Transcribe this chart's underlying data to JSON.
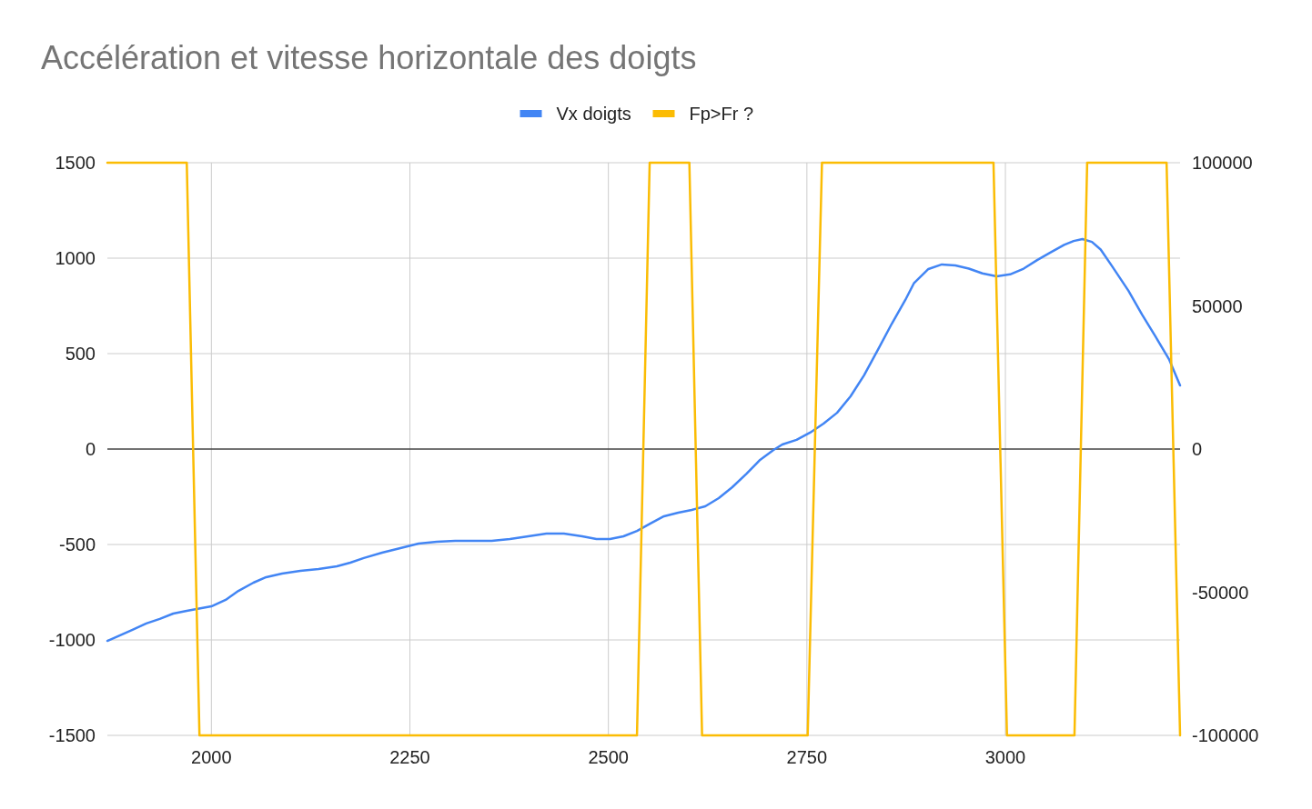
{
  "chart_data": {
    "type": "line",
    "title": "Accélération et vitesse horizontale des doigts",
    "xlim": [
      1869,
      3220
    ],
    "xticks": [
      2000,
      2250,
      2500,
      2750,
      3000
    ],
    "ylim": [
      -1500,
      1500
    ],
    "yticks": [
      -1500,
      -1000,
      -500,
      0,
      500,
      1000,
      1500
    ],
    "y2lim": [
      -100000,
      100000
    ],
    "y2ticks": [
      -100000,
      -50000,
      0,
      50000,
      100000
    ],
    "grid": true,
    "legend": "top",
    "ref_lines": [
      {
        "axis": "y",
        "value": 0,
        "color": "#000000"
      }
    ],
    "series": [
      {
        "name": "Vx doigts",
        "color": "#4285f4",
        "x": [
          1869,
          1900,
          1918,
          1935,
          1952,
          1969,
          2000,
          2018,
          2034,
          2053,
          2069,
          2089,
          2112,
          2135,
          2158,
          2175,
          2192,
          2215,
          2238,
          2261,
          2284,
          2307,
          2330,
          2353,
          2376,
          2399,
          2422,
          2444,
          2467,
          2485,
          2502,
          2519,
          2536,
          2553,
          2570,
          2588,
          2605,
          2622,
          2639,
          2656,
          2674,
          2691,
          2708,
          2719,
          2737,
          2754,
          2771,
          2788,
          2805,
          2822,
          2840,
          2857,
          2874,
          2885,
          2903,
          2920,
          2937,
          2954,
          2971,
          2989,
          3006,
          3023,
          3040,
          3057,
          3074,
          3086,
          3097,
          3109,
          3120,
          3134,
          3155,
          3172,
          3189,
          3206,
          3220
        ],
        "values": [
          -1005,
          -948,
          -914,
          -890,
          -862,
          -848,
          -824,
          -790,
          -743,
          -700,
          -671,
          -652,
          -638,
          -629,
          -614,
          -595,
          -571,
          -543,
          -519,
          -495,
          -486,
          -481,
          -481,
          -481,
          -471,
          -457,
          -443,
          -443,
          -457,
          -471,
          -471,
          -457,
          -429,
          -390,
          -352,
          -333,
          -319,
          -300,
          -257,
          -200,
          -129,
          -57,
          -5,
          24,
          48,
          86,
          133,
          190,
          276,
          386,
          524,
          657,
          781,
          870,
          943,
          967,
          962,
          945,
          920,
          905,
          915,
          945,
          990,
          1030,
          1070,
          1090,
          1100,
          1085,
          1045,
          960,
          829,
          705,
          590,
          471,
          333
        ]
      },
      {
        "name": "Fp>Fr ?",
        "color": "#fbbc04",
        "axis": "y2",
        "x": [
          1869,
          1969,
          1985,
          2536,
          2552,
          2602,
          2618,
          2751,
          2769,
          2985,
          3002,
          3087,
          3103,
          3203,
          3220
        ],
        "values": [
          100000,
          100000,
          -100000,
          -100000,
          100000,
          100000,
          -100000,
          -100000,
          100000,
          100000,
          -100000,
          -100000,
          100000,
          100000,
          -100000
        ]
      }
    ]
  }
}
